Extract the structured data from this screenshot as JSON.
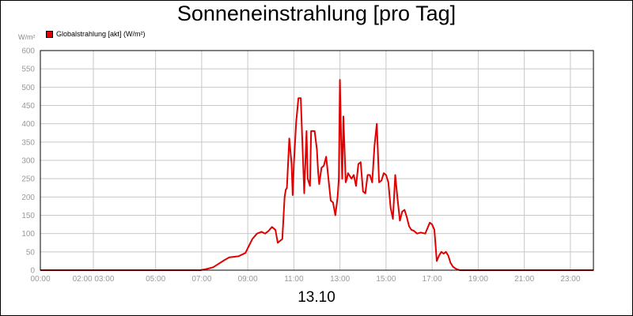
{
  "chart_data": {
    "type": "line",
    "title": "Sonneneinstrahlung [pro Tag]",
    "ylabel": "W/m²",
    "xlabel": "13.10",
    "ylim": [
      0,
      600
    ],
    "xlim": [
      0,
      24
    ],
    "y_ticks": [
      "0",
      "50",
      "100",
      "150",
      "200",
      "250",
      "300",
      "350",
      "400",
      "450",
      "500",
      "550",
      "600"
    ],
    "x_ticks": [
      {
        "x": 0,
        "label": "00:00"
      },
      {
        "x": 2.3,
        "label": "02:00 03:00"
      },
      {
        "x": 5,
        "label": "05:00"
      },
      {
        "x": 7,
        "label": "07:00"
      },
      {
        "x": 9,
        "label": "09:00"
      },
      {
        "x": 11,
        "label": "11:00"
      },
      {
        "x": 13,
        "label": "13:00"
      },
      {
        "x": 15,
        "label": "15:00"
      },
      {
        "x": 17,
        "label": "17:00"
      },
      {
        "x": 19,
        "label": "19:00"
      },
      {
        "x": 21,
        "label": "21:00"
      },
      {
        "x": 23,
        "label": "23:00"
      }
    ],
    "grid": true,
    "legend_position": "top-left",
    "series": [
      {
        "name": "Globalstrahlung [akt] (W/m²)",
        "color": "#e00000",
        "x": [
          0,
          6.95,
          7.2,
          7.5,
          7.75,
          8.0,
          8.2,
          8.6,
          8.9,
          9.0,
          9.2,
          9.4,
          9.6,
          9.75,
          9.9,
          10.05,
          10.2,
          10.3,
          10.4,
          10.5,
          10.6,
          10.65,
          10.7,
          10.8,
          10.9,
          10.95,
          11.0,
          11.1,
          11.2,
          11.3,
          11.45,
          11.55,
          11.6,
          11.7,
          11.75,
          11.9,
          12.0,
          12.05,
          12.1,
          12.2,
          12.3,
          12.4,
          12.5,
          12.6,
          12.7,
          12.8,
          12.9,
          12.95,
          13.0,
          13.05,
          13.1,
          13.15,
          13.25,
          13.3,
          13.35,
          13.5,
          13.6,
          13.7,
          13.8,
          13.9,
          14.0,
          14.1,
          14.2,
          14.3,
          14.4,
          14.5,
          14.6,
          14.7,
          14.8,
          14.9,
          15.0,
          15.1,
          15.2,
          15.3,
          15.4,
          15.5,
          15.6,
          15.7,
          15.8,
          15.9,
          16.0,
          16.1,
          16.2,
          16.35,
          16.5,
          16.7,
          16.9,
          17.0,
          17.1,
          17.2,
          17.3,
          17.4,
          17.5,
          17.6,
          17.7,
          17.8,
          17.9,
          18.0,
          18.1,
          18.2,
          18.35,
          18.5,
          24
        ],
        "y": [
          0,
          0,
          3,
          8,
          18,
          28,
          35,
          38,
          47,
          60,
          85,
          100,
          105,
          100,
          107,
          118,
          110,
          75,
          80,
          85,
          200,
          220,
          225,
          360,
          290,
          205,
          290,
          405,
          470,
          470,
          210,
          380,
          250,
          230,
          380,
          380,
          330,
          270,
          235,
          280,
          285,
          310,
          250,
          190,
          185,
          150,
          200,
          250,
          520,
          360,
          250,
          420,
          240,
          250,
          265,
          250,
          260,
          230,
          290,
          295,
          215,
          210,
          260,
          260,
          240,
          340,
          400,
          240,
          245,
          265,
          260,
          240,
          170,
          140,
          260,
          195,
          135,
          160,
          165,
          145,
          120,
          110,
          108,
          100,
          103,
          100,
          130,
          125,
          110,
          25,
          40,
          50,
          45,
          50,
          40,
          20,
          10,
          5,
          2,
          0,
          0,
          0,
          0
        ]
      }
    ]
  }
}
